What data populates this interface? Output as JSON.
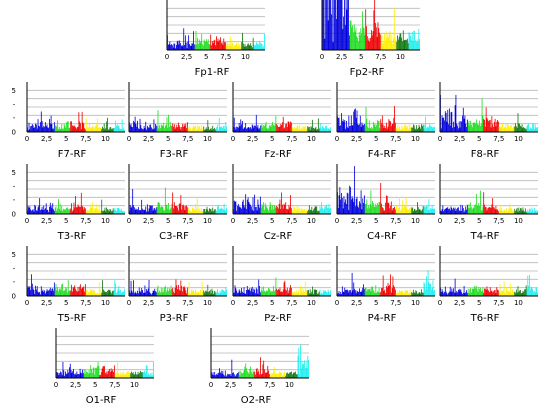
{
  "chart_data": {
    "type": "bar",
    "description_free": true,
    "x_ticks": [
      "0",
      "2,5",
      "5",
      "7,5",
      "10"
    ],
    "y_ticks": [
      "0",
      "5"
    ],
    "xlim": [
      0,
      12.5
    ],
    "ylim": [
      0,
      6
    ],
    "band_colors": {
      "delta": "#0000dd",
      "theta": "#22dd22",
      "alpha1": "#ee0000",
      "alpha2": "#ffee00",
      "beta1": "#117711",
      "beta2": "#22eeee"
    },
    "band_edges": [
      0,
      3.5,
      5.5,
      7.5,
      9.5,
      11,
      12.5
    ],
    "panels": [
      {
        "label": "Fp1-RF",
        "peak": 1.2,
        "delta_boost": 1.0,
        "seed": 11,
        "accent": 0,
        "show_y": false
      },
      {
        "label": "Fp2-RF",
        "peak": 3.0,
        "delta_boost": 6.0,
        "seed": 23,
        "accent": 0,
        "show_y": false
      },
      {
        "label": "F7-RF",
        "peak": 1.0,
        "delta_boost": 1.6,
        "seed": 31,
        "accent": 0,
        "show_y": true
      },
      {
        "label": "F3-RF",
        "peak": 1.0,
        "delta_boost": 1.3,
        "seed": 37,
        "accent": 0,
        "show_y": false
      },
      {
        "label": "Fz-RF",
        "peak": 1.0,
        "delta_boost": 1.1,
        "seed": 41,
        "accent": 0,
        "show_y": false
      },
      {
        "label": "F4-RF",
        "peak": 1.2,
        "delta_boost": 2.6,
        "seed": 43,
        "accent": 0,
        "show_y": false
      },
      {
        "label": "F8-RF",
        "peak": 1.4,
        "delta_boost": 3.6,
        "seed": 47,
        "accent": 0,
        "show_y": false
      },
      {
        "label": "T3-RF",
        "peak": 1.0,
        "delta_boost": 1.4,
        "seed": 53,
        "accent": 0,
        "show_y": true
      },
      {
        "label": "C3-RF",
        "peak": 1.1,
        "delta_boost": 1.3,
        "seed": 59,
        "accent": 0,
        "show_y": false
      },
      {
        "label": "Cz-RF",
        "peak": 1.2,
        "delta_boost": 2.0,
        "seed": 61,
        "accent": 0,
        "show_y": false
      },
      {
        "label": "C4-RF",
        "peak": 1.3,
        "delta_boost": 3.0,
        "seed": 67,
        "accent": 0,
        "show_y": false
      },
      {
        "label": "T4-RF",
        "peak": 1.0,
        "delta_boost": 1.5,
        "seed": 71,
        "accent": 0,
        "show_y": false
      },
      {
        "label": "T5-RF",
        "peak": 1.1,
        "delta_boost": 1.2,
        "seed": 73,
        "accent": 0,
        "show_y": true
      },
      {
        "label": "P3-RF",
        "peak": 1.0,
        "delta_boost": 1.1,
        "seed": 79,
        "accent": 0,
        "show_y": false
      },
      {
        "label": "Pz-RF",
        "peak": 1.0,
        "delta_boost": 1.0,
        "seed": 83,
        "accent": 0,
        "show_y": false
      },
      {
        "label": "P4-RF",
        "peak": 1.0,
        "delta_boost": 1.0,
        "seed": 89,
        "accent": 1.4,
        "show_y": false
      },
      {
        "label": "T6-RF",
        "peak": 1.0,
        "delta_boost": 1.2,
        "seed": 97,
        "accent": 0.6,
        "show_y": false
      },
      {
        "label": "O1-RF",
        "peak": 1.1,
        "delta_boost": 1.6,
        "seed": 101,
        "accent": 0,
        "show_y": false
      },
      {
        "label": "O2-RF",
        "peak": 1.0,
        "delta_boost": 0.8,
        "seed": 103,
        "accent": 2.0,
        "show_y": false
      }
    ]
  }
}
